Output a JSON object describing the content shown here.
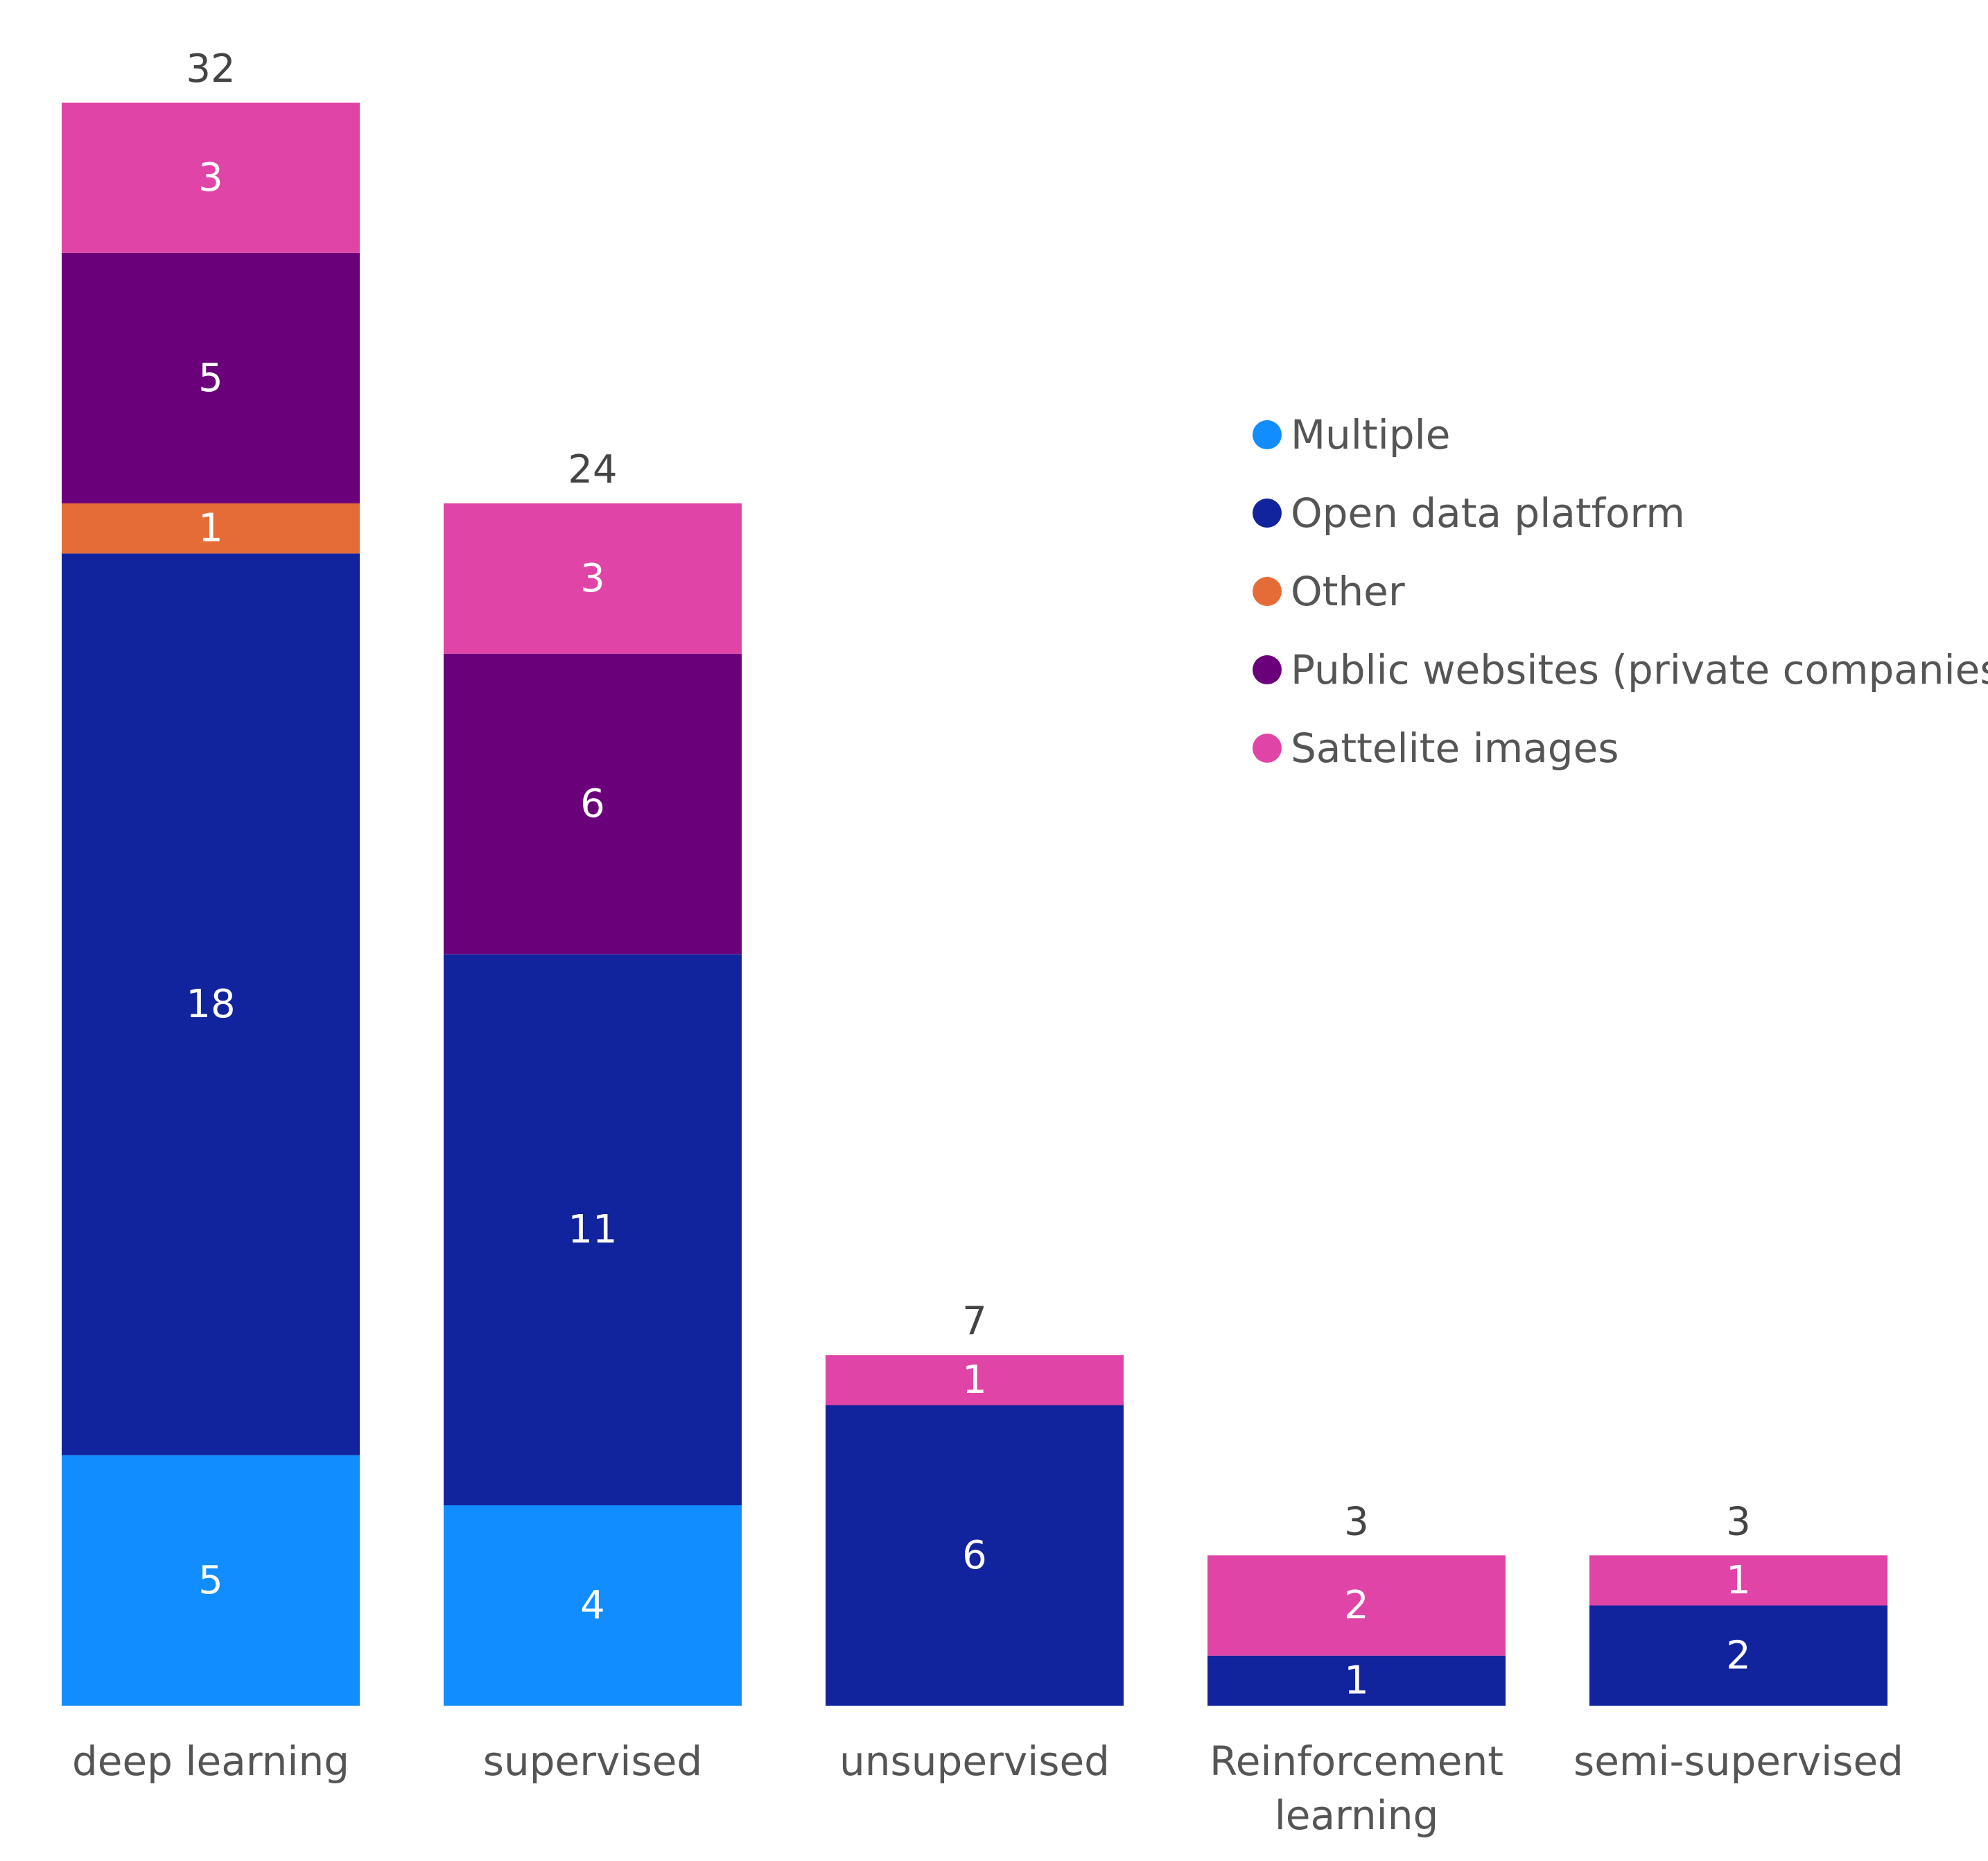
{
  "chart_data": {
    "type": "bar",
    "stacked": true,
    "title": "",
    "xlabel": "",
    "ylabel": "",
    "ylim": [
      0,
      32
    ],
    "grid": false,
    "legend_position": "right",
    "categories": [
      [
        "deep learning"
      ],
      [
        "supervised"
      ],
      [
        "unsupervised"
      ],
      [
        "Reinforcement",
        "learning"
      ],
      [
        "semi-supervised"
      ]
    ],
    "totals": [
      32,
      24,
      7,
      3,
      3
    ],
    "series": [
      {
        "name": "Multiple",
        "color": "#118DFF",
        "values": [
          5,
          4,
          0,
          0,
          0
        ]
      },
      {
        "name": "Open data platform",
        "color": "#12239E",
        "values": [
          18,
          11,
          6,
          1,
          2
        ]
      },
      {
        "name": "Other",
        "color": "#E66C37",
        "values": [
          1,
          0,
          0,
          0,
          0
        ]
      },
      {
        "name": "Public websites (private companies)",
        "color": "#6B007B",
        "values": [
          5,
          6,
          0,
          0,
          0
        ]
      },
      {
        "name": "Sattelite images",
        "color": "#E044A7",
        "values": [
          3,
          3,
          1,
          2,
          1
        ]
      }
    ]
  }
}
